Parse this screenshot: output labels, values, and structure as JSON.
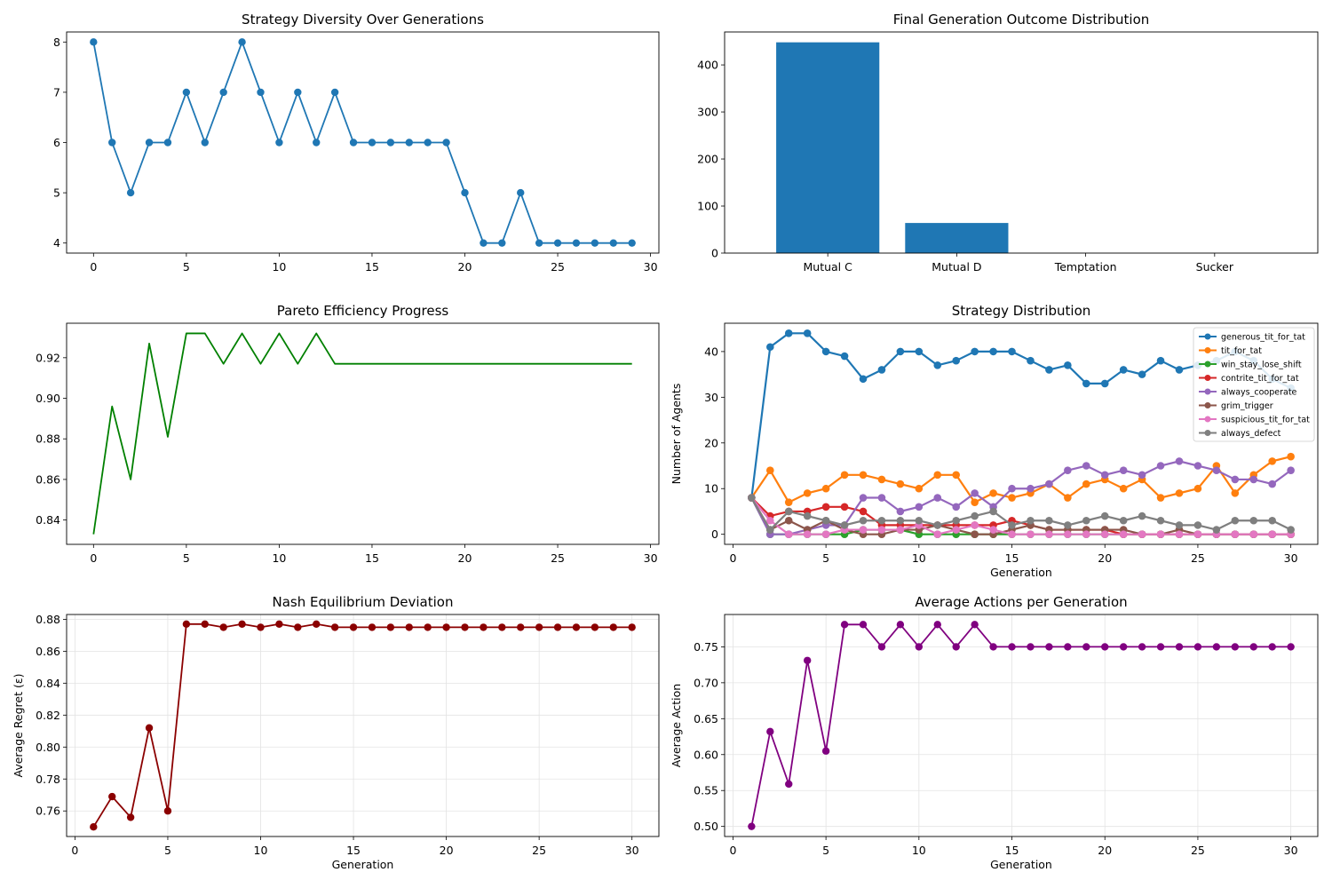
{
  "chart_data": [
    {
      "type": "line",
      "title": "Strategy Diversity Over Generations",
      "xlabel": "",
      "ylabel": "",
      "grid": false,
      "markers": true,
      "xlim": [
        -1.45,
        30.45
      ],
      "ylim": [
        3.8,
        8.2
      ],
      "xticks": [
        0,
        5,
        10,
        15,
        20,
        25,
        30
      ],
      "yticks": [
        4,
        5,
        6,
        7,
        8
      ],
      "color": "#1f77b4",
      "x": [
        0,
        1,
        2,
        3,
        4,
        5,
        6,
        7,
        8,
        9,
        10,
        11,
        12,
        13,
        14,
        15,
        16,
        17,
        18,
        19,
        20,
        21,
        22,
        23,
        24,
        25,
        26,
        27,
        28,
        29
      ],
      "y": [
        8,
        6,
        5,
        6,
        6,
        7,
        6,
        7,
        8,
        7,
        6,
        7,
        6,
        7,
        6,
        6,
        6,
        6,
        6,
        6,
        5,
        4,
        4,
        5,
        4,
        4,
        4,
        4,
        4,
        4
      ]
    },
    {
      "type": "bar",
      "title": "Final Generation Outcome Distribution",
      "xlabel": "",
      "ylabel": "",
      "grid": false,
      "color": "#1f77b4",
      "ylim": [
        0,
        470
      ],
      "yticks": [
        0,
        100,
        200,
        300,
        400
      ],
      "categories": [
        "Mutual C",
        "Mutual D",
        "Temptation",
        "Sucker"
      ],
      "values": [
        448,
        64,
        0,
        0
      ]
    },
    {
      "type": "line",
      "title": "Pareto Efficiency Progress",
      "xlabel": "",
      "ylabel": "",
      "grid": false,
      "markers": false,
      "xlim": [
        -1.45,
        30.45
      ],
      "ylim": [
        0.828,
        0.937
      ],
      "xticks": [
        0,
        5,
        10,
        15,
        20,
        25,
        30
      ],
      "yticks": [
        0.84,
        0.86,
        0.88,
        0.9,
        0.92
      ],
      "ytick_labels": [
        "0.84",
        "0.86",
        "0.88",
        "0.90",
        "0.92"
      ],
      "color": "#008000",
      "x": [
        0,
        1,
        2,
        3,
        4,
        5,
        6,
        7,
        8,
        9,
        10,
        11,
        12,
        13,
        14,
        15,
        16,
        17,
        18,
        19,
        20,
        21,
        22,
        23,
        24,
        25,
        26,
        27,
        28,
        29
      ],
      "y": [
        0.833,
        0.896,
        0.86,
        0.927,
        0.881,
        0.932,
        0.932,
        0.917,
        0.932,
        0.917,
        0.932,
        0.917,
        0.932,
        0.917,
        0.917,
        0.917,
        0.917,
        0.917,
        0.917,
        0.917,
        0.917,
        0.917,
        0.917,
        0.917,
        0.917,
        0.917,
        0.917,
        0.917,
        0.917,
        0.917
      ]
    },
    {
      "type": "line",
      "title": "Strategy Distribution",
      "xlabel": "Generation",
      "ylabel": "Number of Agents",
      "grid": false,
      "markers": true,
      "legend_position": "top-right",
      "xlim": [
        -0.45,
        31.45
      ],
      "ylim": [
        -2.2,
        46.2
      ],
      "xticks": [
        0,
        5,
        10,
        15,
        20,
        25,
        30
      ],
      "yticks": [
        0,
        10,
        20,
        30,
        40
      ],
      "x": [
        1,
        2,
        3,
        4,
        5,
        6,
        7,
        8,
        9,
        10,
        11,
        12,
        13,
        14,
        15,
        16,
        17,
        18,
        19,
        20,
        21,
        22,
        23,
        24,
        25,
        26,
        27,
        28,
        29,
        30
      ],
      "series": [
        {
          "name": "generous_tit_for_tat",
          "color": "#1f77b4",
          "values": [
            8,
            41,
            44,
            44,
            40,
            39,
            34,
            36,
            40,
            40,
            37,
            38,
            40,
            40,
            40,
            38,
            36,
            37,
            33,
            33,
            36,
            35,
            38,
            36,
            37,
            38,
            40,
            38,
            34,
            32
          ]
        },
        {
          "name": "tit_for_tat",
          "color": "#ff7f0e",
          "values": [
            8,
            14,
            7,
            9,
            10,
            13,
            13,
            12,
            11,
            10,
            13,
            13,
            7,
            9,
            8,
            9,
            11,
            8,
            11,
            12,
            10,
            12,
            8,
            9,
            10,
            15,
            9,
            13,
            16,
            17
          ]
        },
        {
          "name": "win_stay_lose_shift",
          "color": "#2ca02c",
          "values": [
            8,
            0,
            0,
            0,
            0,
            0,
            1,
            1,
            1,
            0,
            0,
            0,
            0,
            0,
            0,
            0,
            0,
            0,
            0,
            0,
            0,
            0,
            0,
            0,
            0,
            0,
            0,
            0,
            0,
            0
          ]
        },
        {
          "name": "contrite_tit_for_tat",
          "color": "#d62728",
          "values": [
            8,
            4,
            5,
            5,
            6,
            6,
            5,
            2,
            2,
            2,
            2,
            2,
            2,
            2,
            3,
            2,
            1,
            1,
            1,
            1,
            0,
            0,
            0,
            0,
            0,
            0,
            0,
            0,
            0,
            0
          ]
        },
        {
          "name": "always_cooperate",
          "color": "#9467bd",
          "values": [
            8,
            0,
            0,
            1,
            2,
            2,
            8,
            8,
            5,
            6,
            8,
            6,
            9,
            6,
            10,
            10,
            11,
            14,
            15,
            13,
            14,
            13,
            15,
            16,
            15,
            14,
            12,
            12,
            11,
            14
          ]
        },
        {
          "name": "grim_trigger",
          "color": "#8c564b",
          "values": [
            8,
            1,
            3,
            1,
            3,
            1,
            0,
            0,
            1,
            1,
            2,
            1,
            0,
            0,
            1,
            2,
            1,
            1,
            1,
            1,
            1,
            0,
            0,
            1,
            0,
            0,
            0,
            0,
            0,
            0
          ]
        },
        {
          "name": "suspicious_tit_for_tat",
          "color": "#e377c2",
          "values": [
            8,
            3,
            0,
            0,
            0,
            1,
            1,
            1,
            1,
            2,
            0,
            1,
            2,
            1,
            0,
            0,
            0,
            0,
            0,
            0,
            0,
            0,
            0,
            0,
            0,
            0,
            0,
            0,
            0,
            0
          ]
        },
        {
          "name": "always_defect",
          "color": "#7f7f7f",
          "values": [
            8,
            1,
            5,
            4,
            3,
            2,
            3,
            3,
            3,
            3,
            2,
            3,
            4,
            5,
            2,
            3,
            3,
            2,
            3,
            4,
            3,
            4,
            3,
            2,
            2,
            1,
            3,
            3,
            3,
            1
          ]
        }
      ]
    },
    {
      "type": "line",
      "title": "Nash Equilibrium Deviation",
      "xlabel": "Generation",
      "ylabel": "Average Regret (ε)",
      "grid": true,
      "markers": true,
      "xlim": [
        -0.45,
        31.45
      ],
      "ylim": [
        0.744,
        0.883
      ],
      "xticks": [
        0,
        5,
        10,
        15,
        20,
        25,
        30
      ],
      "yticks": [
        0.76,
        0.78,
        0.8,
        0.82,
        0.84,
        0.86,
        0.88
      ],
      "ytick_labels": [
        "0.76",
        "0.78",
        "0.80",
        "0.82",
        "0.84",
        "0.86",
        "0.88"
      ],
      "color": "#8b0000",
      "x": [
        1,
        2,
        3,
        4,
        5,
        6,
        7,
        8,
        9,
        10,
        11,
        12,
        13,
        14,
        15,
        16,
        17,
        18,
        19,
        20,
        21,
        22,
        23,
        24,
        25,
        26,
        27,
        28,
        29,
        30
      ],
      "y": [
        0.75,
        0.769,
        0.756,
        0.812,
        0.76,
        0.877,
        0.877,
        0.875,
        0.877,
        0.875,
        0.877,
        0.875,
        0.877,
        0.875,
        0.875,
        0.875,
        0.875,
        0.875,
        0.875,
        0.875,
        0.875,
        0.875,
        0.875,
        0.875,
        0.875,
        0.875,
        0.875,
        0.875,
        0.875,
        0.875
      ]
    },
    {
      "type": "line",
      "title": "Average Actions per Generation",
      "xlabel": "Generation",
      "ylabel": "Average Action",
      "grid": true,
      "markers": true,
      "xlim": [
        -0.45,
        31.45
      ],
      "ylim": [
        0.486,
        0.795
      ],
      "xticks": [
        0,
        5,
        10,
        15,
        20,
        25,
        30
      ],
      "yticks": [
        0.5,
        0.55,
        0.6,
        0.65,
        0.7,
        0.75
      ],
      "ytick_labels": [
        "0.50",
        "0.55",
        "0.60",
        "0.65",
        "0.70",
        "0.75"
      ],
      "color": "#800080",
      "x": [
        1,
        2,
        3,
        4,
        5,
        6,
        7,
        8,
        9,
        10,
        11,
        12,
        13,
        14,
        15,
        16,
        17,
        18,
        19,
        20,
        21,
        22,
        23,
        24,
        25,
        26,
        27,
        28,
        29,
        30
      ],
      "y": [
        0.5,
        0.632,
        0.559,
        0.731,
        0.605,
        0.781,
        0.781,
        0.75,
        0.781,
        0.75,
        0.781,
        0.75,
        0.781,
        0.75,
        0.75,
        0.75,
        0.75,
        0.75,
        0.75,
        0.75,
        0.75,
        0.75,
        0.75,
        0.75,
        0.75,
        0.75,
        0.75,
        0.75,
        0.75,
        0.75
      ]
    }
  ]
}
